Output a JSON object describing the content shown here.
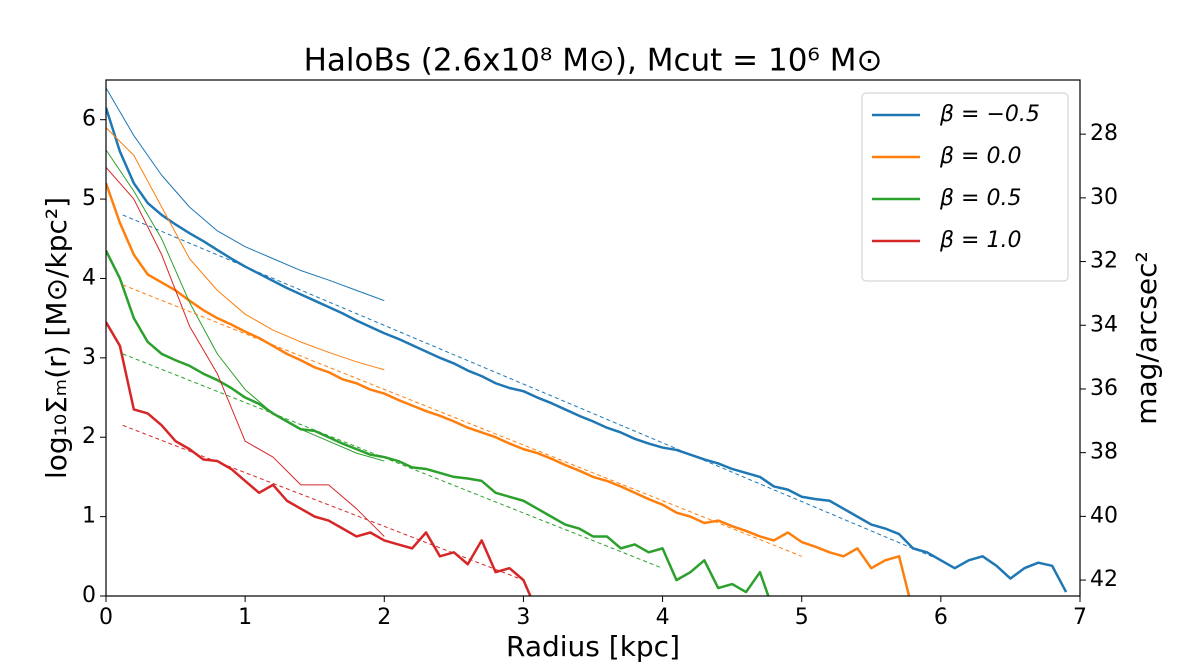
{
  "chart_data": {
    "type": "line",
    "title": "HaloBs (2.6x10⁸ M⊙), Mcut = 10⁶ M⊙",
    "x_label": "Radius [kpc]",
    "y_label": "log₁₀Σₘ(r) [M⊙/kpc²]",
    "y2_label": "mag/arcsec²",
    "xlim": [
      0,
      7
    ],
    "xticks": [
      0,
      1,
      2,
      3,
      4,
      5,
      6,
      7
    ],
    "ylim": [
      0,
      6.5
    ],
    "yticks": [
      0,
      1,
      2,
      3,
      4,
      5,
      6
    ],
    "y2lim": [
      42.5,
      26.3
    ],
    "y2ticks": [
      28,
      30,
      32,
      34,
      36,
      38,
      40,
      42
    ],
    "legend": "upper right",
    "series": [
      {
        "name": "β = −0.5",
        "color": "#1f77b4",
        "linewidth": 2.5,
        "x": [
          0,
          0.1,
          0.2,
          0.3,
          0.4,
          0.5,
          0.6,
          0.7,
          0.8,
          0.9,
          1,
          1.1,
          1.2,
          1.3,
          1.4,
          1.5,
          1.6,
          1.7,
          1.8,
          1.9,
          2,
          2.1,
          2.2,
          2.3,
          2.4,
          2.5,
          2.6,
          2.7,
          2.8,
          2.9,
          3,
          3.1,
          3.2,
          3.3,
          3.4,
          3.5,
          3.6,
          3.7,
          3.8,
          3.9,
          4,
          4.1,
          4.2,
          4.3,
          4.4,
          4.5,
          4.6,
          4.7,
          4.8,
          4.9,
          5,
          5.1,
          5.2,
          5.3,
          5.4,
          5.5,
          5.6,
          5.7,
          5.8,
          5.9,
          6,
          6.1,
          6.2,
          6.3,
          6.4,
          6.5,
          6.6,
          6.7,
          6.8,
          6.9
        ],
        "values": [
          6.15,
          5.6,
          5.2,
          4.95,
          4.8,
          4.68,
          4.57,
          4.47,
          4.36,
          4.25,
          4.15,
          4.06,
          3.97,
          3.88,
          3.8,
          3.72,
          3.64,
          3.56,
          3.47,
          3.39,
          3.31,
          3.24,
          3.16,
          3.08,
          3.0,
          2.93,
          2.84,
          2.77,
          2.68,
          2.62,
          2.58,
          2.5,
          2.43,
          2.35,
          2.27,
          2.2,
          2.12,
          2.06,
          1.98,
          1.92,
          1.87,
          1.84,
          1.78,
          1.72,
          1.67,
          1.6,
          1.55,
          1.5,
          1.38,
          1.34,
          1.25,
          1.22,
          1.2,
          1.1,
          1.0,
          0.9,
          0.85,
          0.78,
          0.6,
          0.55,
          0.45,
          0.35,
          0.45,
          0.5,
          0.38,
          0.22,
          0.35,
          0.42,
          0.38,
          0.05
        ]
      },
      {
        "name": "β = 0.0",
        "color": "#ff7f0e",
        "linewidth": 2.5,
        "x": [
          0,
          0.1,
          0.2,
          0.3,
          0.4,
          0.5,
          0.6,
          0.7,
          0.8,
          0.9,
          1,
          1.1,
          1.2,
          1.3,
          1.4,
          1.5,
          1.6,
          1.7,
          1.8,
          1.9,
          2,
          2.1,
          2.2,
          2.3,
          2.4,
          2.5,
          2.6,
          2.7,
          2.8,
          2.9,
          3,
          3.1,
          3.2,
          3.3,
          3.4,
          3.5,
          3.6,
          3.7,
          3.8,
          3.9,
          4,
          4.1,
          4.2,
          4.3,
          4.4,
          4.5,
          4.6,
          4.7,
          4.8,
          4.9,
          5,
          5.1,
          5.2,
          5.3,
          5.4,
          5.5,
          5.6,
          5.7,
          5.8
        ],
        "values": [
          5.2,
          4.7,
          4.3,
          4.05,
          3.95,
          3.85,
          3.72,
          3.6,
          3.5,
          3.42,
          3.33,
          3.25,
          3.15,
          3.05,
          2.97,
          2.88,
          2.82,
          2.73,
          2.68,
          2.6,
          2.55,
          2.47,
          2.4,
          2.33,
          2.27,
          2.2,
          2.12,
          2.06,
          2.0,
          1.92,
          1.85,
          1.8,
          1.73,
          1.65,
          1.58,
          1.5,
          1.45,
          1.38,
          1.3,
          1.22,
          1.15,
          1.05,
          1.0,
          0.92,
          0.95,
          0.88,
          0.82,
          0.75,
          0.7,
          0.8,
          0.68,
          0.62,
          0.55,
          0.5,
          0.6,
          0.35,
          0.45,
          0.5,
          -0.2
        ]
      },
      {
        "name": "β = 0.5",
        "color": "#2ca02c",
        "linewidth": 2.5,
        "x": [
          0,
          0.1,
          0.2,
          0.3,
          0.4,
          0.5,
          0.6,
          0.7,
          0.8,
          0.9,
          1,
          1.1,
          1.2,
          1.3,
          1.4,
          1.5,
          1.6,
          1.7,
          1.8,
          1.9,
          2,
          2.1,
          2.2,
          2.3,
          2.4,
          2.5,
          2.6,
          2.7,
          2.8,
          2.9,
          3,
          3.1,
          3.2,
          3.3,
          3.4,
          3.5,
          3.6,
          3.7,
          3.8,
          3.9,
          4,
          4.1,
          4.2,
          4.3,
          4.4,
          4.5,
          4.6,
          4.7,
          4.8
        ],
        "values": [
          4.35,
          4.0,
          3.5,
          3.2,
          3.05,
          2.97,
          2.9,
          2.8,
          2.72,
          2.62,
          2.5,
          2.42,
          2.3,
          2.2,
          2.1,
          2.08,
          2.0,
          1.92,
          1.85,
          1.78,
          1.75,
          1.7,
          1.62,
          1.6,
          1.55,
          1.5,
          1.48,
          1.45,
          1.3,
          1.25,
          1.2,
          1.1,
          1.0,
          0.9,
          0.85,
          0.75,
          0.75,
          0.6,
          0.65,
          0.55,
          0.6,
          0.2,
          0.3,
          0.45,
          0.1,
          0.15,
          0.05,
          0.3,
          -0.2
        ]
      },
      {
        "name": "β = 1.0",
        "color": "#d62728",
        "linewidth": 2.5,
        "x": [
          0,
          0.1,
          0.2,
          0.3,
          0.4,
          0.5,
          0.6,
          0.7,
          0.8,
          0.9,
          1,
          1.1,
          1.2,
          1.3,
          1.4,
          1.5,
          1.6,
          1.7,
          1.8,
          1.9,
          2,
          2.1,
          2.2,
          2.3,
          2.4,
          2.5,
          2.6,
          2.7,
          2.8,
          2.9,
          3,
          3.1
        ],
        "values": [
          3.45,
          3.15,
          2.35,
          2.3,
          2.15,
          1.95,
          1.85,
          1.72,
          1.7,
          1.6,
          1.45,
          1.3,
          1.4,
          1.2,
          1.1,
          1.0,
          0.95,
          0.85,
          0.75,
          0.8,
          0.7,
          0.65,
          0.6,
          0.8,
          0.5,
          0.55,
          0.4,
          0.7,
          0.3,
          0.35,
          0.2,
          -0.2
        ]
      },
      {
        "color": "#1f77b4",
        "linewidth": 1,
        "x": [
          0,
          0.2,
          0.4,
          0.6,
          0.8,
          1,
          1.2,
          1.4,
          1.6,
          1.8,
          2
        ],
        "values": [
          6.4,
          5.8,
          5.3,
          4.9,
          4.6,
          4.4,
          4.25,
          4.1,
          3.98,
          3.85,
          3.72
        ]
      },
      {
        "color": "#ff7f0e",
        "linewidth": 1,
        "x": [
          0,
          0.2,
          0.4,
          0.6,
          0.8,
          1,
          1.2,
          1.4,
          1.6,
          1.8,
          2
        ],
        "values": [
          5.9,
          5.55,
          4.9,
          4.25,
          3.85,
          3.55,
          3.35,
          3.2,
          3.07,
          2.95,
          2.85
        ]
      },
      {
        "color": "#2ca02c",
        "linewidth": 1,
        "x": [
          0,
          0.2,
          0.4,
          0.6,
          0.8,
          1,
          1.2,
          1.4,
          1.6,
          1.8,
          2
        ],
        "values": [
          5.62,
          5.1,
          4.5,
          3.7,
          3.05,
          2.6,
          2.3,
          2.1,
          1.95,
          1.8,
          1.7
        ]
      },
      {
        "color": "#d62728",
        "linewidth": 1,
        "x": [
          0,
          0.2,
          0.4,
          0.6,
          0.8,
          1,
          1.2,
          1.4,
          1.6,
          1.8,
          2
        ],
        "values": [
          5.4,
          5.0,
          4.3,
          3.4,
          2.8,
          1.95,
          1.75,
          1.4,
          1.4,
          1.1,
          0.75
        ]
      },
      {
        "color": "#1f77b4",
        "linewidth": 1,
        "dash": true,
        "x": [
          0.12,
          6.0
        ],
        "values": [
          4.8,
          0.45
        ]
      },
      {
        "color": "#ff7f0e",
        "linewidth": 1,
        "dash": true,
        "x": [
          0.12,
          5.0
        ],
        "values": [
          3.92,
          0.5
        ]
      },
      {
        "color": "#2ca02c",
        "linewidth": 1,
        "dash": true,
        "x": [
          0.12,
          4.0
        ],
        "values": [
          3.05,
          0.35
        ]
      },
      {
        "color": "#d62728",
        "linewidth": 1,
        "dash": true,
        "x": [
          0.12,
          3.0
        ],
        "values": [
          2.15,
          0.2
        ]
      }
    ]
  }
}
